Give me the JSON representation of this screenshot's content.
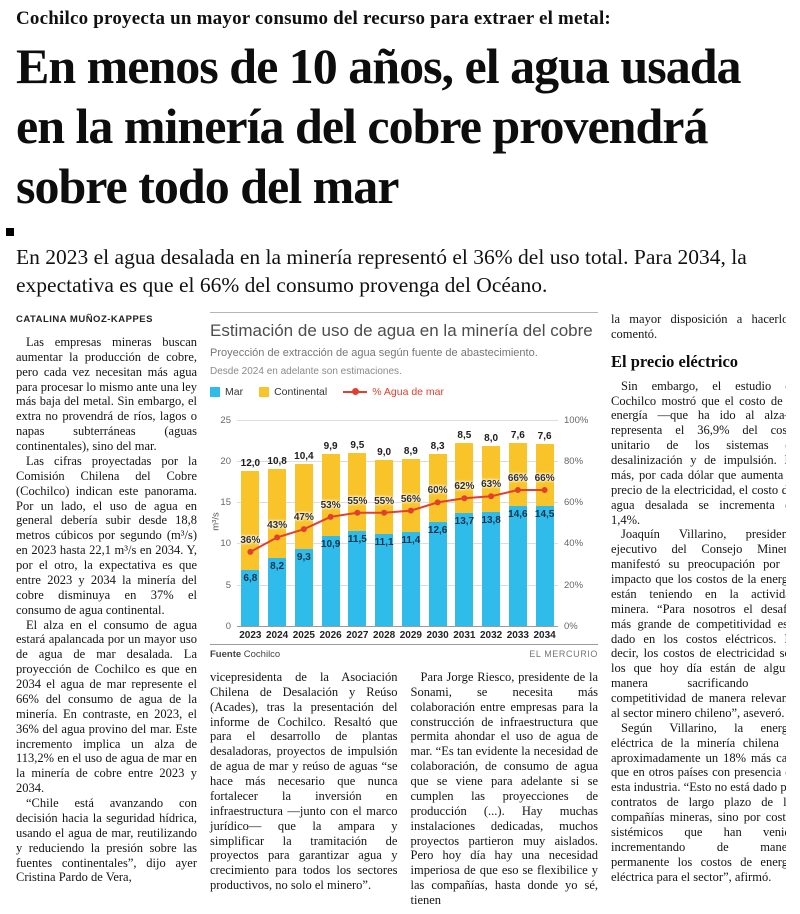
{
  "header": {
    "kicker": "Cochilco proyecta un mayor consumo del recurso para extraer el metal:",
    "headline": "En menos de 10 años, el agua usada en la minería del cobre provendrá sobre todo del mar",
    "deck": "En 2023 el agua desalada en la minería representó el 36% del uso total. Para 2034, la expectativa es que el 66% del consumo provenga del Océano.",
    "byline": "CATALINA MUÑOZ-KAPPES"
  },
  "article": {
    "left": [
      "Las empresas mineras buscan aumentar la producción de cobre, pero cada vez necesitan más agua para procesar lo mismo ante una ley más baja del metal. Sin embargo, el extra no provendrá de ríos, lagos o napas subterráneas (aguas continentales), sino del mar.",
      "Las cifras proyectadas por la Comisión Chilena del Cobre (Cochilco) indican este panorama. Por un lado, el uso de agua en general debería subir desde 18,8 metros cúbicos por segundo (m³/s) en 2023 hasta 22,1 m³/s en 2034. Y, por el otro, la expectativa es que entre 2023 y 2034 la minería del cobre disminuya en 37% el consumo de agua continental.",
      "El alza en el consumo de agua estará apalancada por un mayor uso de agua de mar desalada. La proyección de Cochilco es que en 2034 el agua de mar represente el 66% del consumo de agua de la minería. En contraste, en 2023, el 36% del agua provino del mar. Este incremento implica un alza de 113,2% en el uso de agua de mar en la minería de cobre entre 2023 y 2034.",
      "“Chile está avanzando con decisión hacia la seguridad hídrica, usando el agua de mar, reutilizando y reduciendo la presión sobre las fuentes continentales”, dijo ayer Cristina Pardo de Vera,"
    ],
    "mid_a": [
      "vicepresidenta de la Asociación Chilena de Desalación y Reúso (Acades), tras la presentación del informe de Cochilco. Resaltó que para el desarrollo de plantas desaladoras, proyectos de impulsión de agua de mar y reúso de aguas “se hace más necesario que nunca fortalecer la inversión en infraestructura —junto con el marco jurídico— que la ampara y simplificar la tramitación de proyectos para garantizar agua y crecimiento para todos los sectores productivos, no solo el minero”."
    ],
    "mid_b": [
      "Para Jorge Riesco, presidente de la Sonami, se necesita más colaboración entre empresas para la construcción de infraestructura que permita ahondar el uso de agua de mar. “Es tan evidente la necesidad de colaboración, de consumo de agua que se viene para adelante si se cumplen las proyecciones de producción (...). Hay muchas instalaciones dedicadas, muchos proyectos partieron muy aislados. Pero hoy día hay una necesidad imperiosa de que eso se flexibilice y las compañías, hasta donde yo sé, tienen"
    ],
    "right_intro": "la mayor disposición a hacerlo”, comentó.",
    "right_heading": "El precio eléctrico",
    "right": [
      "Sin embargo, el estudio de Cochilco mostró que el costo de la energía —que ha ido al alza— representa el 36,9% del costo unitario de los sistemas de desalinización y de impulsión. Es más, por cada dólar que aumenta el precio de la electricidad, el costo del agua desalada se incrementa en 1,4%.",
      "Joaquín Villarino, presidente ejecutivo del Consejo Minero, manifestó su preocupación por el impacto que los costos de la energía están teniendo en la actividad minera. “Para nosotros el desafío más grande de competitividad está dado en los costos eléctricos. Es decir, los costos de electricidad son los que hoy día están de alguna manera sacrificando la competitividad de manera relevante al sector minero chileno”, aseveró.",
      "Según Villarino, la energía eléctrica de la minería chilena es aproximadamente un 18% más cara que en otros países con presencia de esta industria. “Esto no está dado por contratos de largo plazo de las compañías mineras, sino por costos sistémicos que han venido incrementando de manera permanente los costos de energía eléctrica para el sector”, afirmó."
    ]
  },
  "chart_data": {
    "type": "bar",
    "stacked": true,
    "title": "Estimación de uso de agua en la minería del cobre",
    "subtitle": "Proyección de extracción de agua según fuente de abastecimiento.",
    "note": "Desde 2024 en adelante son estimaciones.",
    "categories": [
      "2023",
      "2024",
      "2025",
      "2026",
      "2027",
      "2028",
      "2029",
      "2030",
      "2031",
      "2032",
      "2033",
      "2034"
    ],
    "series": [
      {
        "name": "Mar",
        "color": "#2fbcea",
        "values": [
          6.8,
          8.2,
          9.3,
          10.9,
          11.5,
          11.1,
          11.4,
          12.6,
          13.7,
          13.8,
          14.6,
          14.5
        ],
        "labels": [
          "6,8",
          "8,2",
          "9,3",
          "10,9",
          "11,5",
          "11,1",
          "11,4",
          "12,6",
          "13,7",
          "13,8",
          "14,6",
          "14,5"
        ]
      },
      {
        "name": "Continental",
        "color": "#f8c42a",
        "values": [
          12.0,
          10.8,
          10.4,
          9.9,
          9.5,
          9.0,
          8.9,
          8.3,
          8.5,
          8.0,
          7.6,
          7.6
        ],
        "labels": [
          "12,0",
          "10,8",
          "10,4",
          "9,9",
          "9,5",
          "9,0",
          "8,9",
          "8,3",
          "8,5",
          "8,0",
          "7,6",
          "7,6"
        ]
      }
    ],
    "line": {
      "name": "% Agua de mar",
      "color": "#e2402f",
      "values": [
        36,
        43,
        47,
        53,
        55,
        55,
        56,
        60,
        62,
        63,
        66,
        66
      ],
      "labels": [
        "36%",
        "43%",
        "47%",
        "53%",
        "55%",
        "55%",
        "56%",
        "60%",
        "62%",
        "63%",
        "66%",
        "66%"
      ]
    },
    "ylabel": "m³/s",
    "ylim": [
      0,
      25
    ],
    "yticks": [
      0,
      5,
      10,
      15,
      20,
      25
    ],
    "y2lim": [
      0,
      100
    ],
    "y2ticks": [
      "0%",
      "20%",
      "40%",
      "60%",
      "80%",
      "100%"
    ],
    "legend_position": "top",
    "grid": true,
    "source_label": "Fuente",
    "source": "Cochilco",
    "credit": "EL MERCURIO"
  }
}
